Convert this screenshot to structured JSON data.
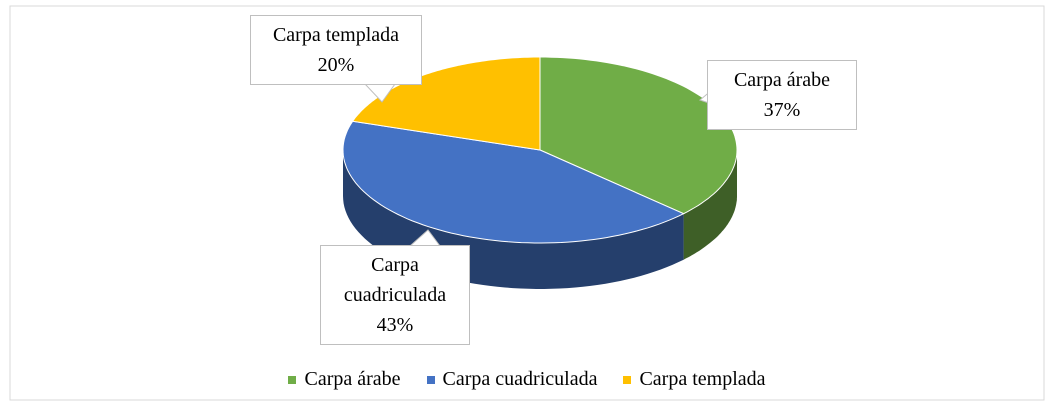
{
  "chart_data": {
    "type": "pie",
    "categories": [
      "Carpa árabe",
      "Carpa cuadriculada",
      "Carpa templada"
    ],
    "values": [
      37,
      43,
      20
    ],
    "value_labels": [
      "37%",
      "43%",
      "20%"
    ],
    "colors": [
      "#70ad47",
      "#4472c4",
      "#ffc000"
    ],
    "legend": "bottom"
  }
}
